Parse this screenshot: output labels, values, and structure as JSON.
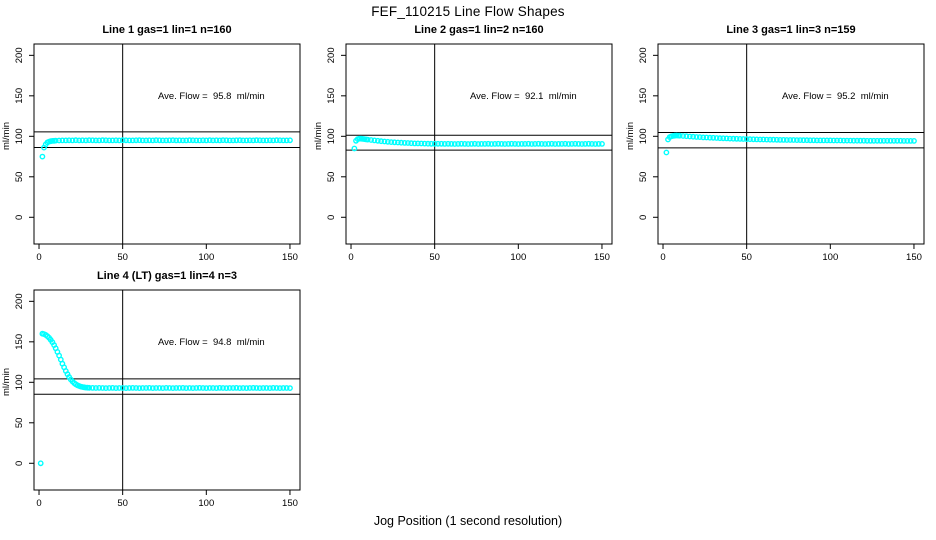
{
  "chart_data": {
    "type": "scatter",
    "title": "FEF_110215  Line Flow Shapes",
    "xlabel": "Jog Position (1 second resolution)",
    "ylabel": "ml/min",
    "marker_color": "#00FFFF",
    "line_color": "#000000",
    "legend": "none",
    "grid": false,
    "vline_x": 50,
    "annotation_xy": [
      103,
      150
    ],
    "axes": {
      "x_ticks": [
        0,
        50,
        100,
        150
      ],
      "y_ticks": [
        0,
        50,
        100,
        150,
        200
      ],
      "x_domain": [
        -3,
        156
      ],
      "y_domain": [
        -33,
        214
      ]
    },
    "panels": [
      {
        "title": "Line 1 gas=1 lin=1 n=160",
        "n": 160,
        "ave_flow": 95.8,
        "ave_label": "Ave. Flow =  95.8  ml/min",
        "hlines": [
          105.4,
          86.2
        ],
        "x_head": [
          2,
          3,
          4,
          5,
          6,
          7,
          8,
          9,
          10
        ],
        "x_tail_range": [
          12,
          150,
          2
        ],
        "y": [
          75,
          86,
          90,
          92.5,
          93.5,
          94,
          94.3,
          94.5,
          94.7,
          94.8,
          95,
          94.9,
          95.1,
          95,
          95.2,
          94.9,
          95.1,
          95,
          95.2,
          95.1,
          94.9,
          95,
          95.2,
          95.1,
          95,
          94.9,
          95.1,
          95,
          95.2,
          95.1,
          94.9,
          95,
          95.1,
          95.2,
          95,
          94.9,
          95.1,
          95,
          95.2,
          95.1,
          95,
          94.9,
          95.1,
          95.2,
          95,
          95.1,
          94.9,
          95,
          95.2,
          95.1,
          95,
          94.9,
          95.1,
          95,
          95.2,
          94.9,
          95.1,
          95,
          95.2,
          95.1,
          94.9,
          95,
          95.1,
          95.2,
          95,
          94.9,
          95.1,
          95,
          95.2,
          95.1,
          95,
          94.9,
          95.1,
          95,
          95.2,
          95.1,
          94.9,
          95,
          95.1
        ]
      },
      {
        "title": "Line 2 gas=1 lin=2 n=160",
        "n": 160,
        "ave_flow": 92.1,
        "ave_label": "Ave. Flow =  92.1  ml/min",
        "hlines": [
          101.3,
          82.9
        ],
        "x_head": [
          2,
          3,
          4,
          5,
          6,
          7,
          8,
          9,
          10
        ],
        "x_tail_range": [
          12,
          150,
          2
        ],
        "y": [
          85,
          94.5,
          96.5,
          97,
          97,
          96.8,
          96.5,
          96.2,
          95.9,
          95.4,
          94.9,
          94.4,
          94,
          93.6,
          93.2,
          92.9,
          92.6,
          92.3,
          92.1,
          91.9,
          91.7,
          91.5,
          91.3,
          91.2,
          91.1,
          91,
          90.9,
          90.8,
          90.8,
          90.7,
          90.7,
          90.6,
          90.7,
          90.6,
          90.5,
          90.6,
          90.7,
          90.6,
          90.5,
          90.6,
          90.7,
          90.5,
          90.6,
          90.6,
          90.7,
          90.5,
          90.6,
          90.7,
          90.6,
          90.5,
          90.6,
          90.7,
          90.6,
          90.5,
          90.6,
          90.6,
          90.7,
          90.5,
          90.6,
          90.7,
          90.6,
          90.5,
          90.6,
          90.7,
          90.5,
          90.6,
          90.6,
          90.7,
          90.5,
          90.6,
          90.7,
          90.6,
          90.5,
          90.6,
          90.7,
          90.6,
          90.5,
          90.6,
          90.6
        ]
      },
      {
        "title": "Line 3 gas=1 lin=3 n=159",
        "n": 159,
        "ave_flow": 95.2,
        "ave_label": "Ave. Flow =  95.2  ml/min",
        "hlines": [
          104.7,
          85.7
        ],
        "x_head": [
          2,
          3,
          4,
          5,
          6,
          7,
          8,
          9,
          10
        ],
        "x_tail_range": [
          12,
          150,
          2
        ],
        "y": [
          80,
          96,
          99,
          100,
          100.5,
          100.8,
          101,
          100.9,
          100.8,
          100.4,
          100.1,
          99.8,
          99.5,
          99.2,
          99,
          98.7,
          98.5,
          98.3,
          98.1,
          97.9,
          97.7,
          97.5,
          97.4,
          97.2,
          97.1,
          96.9,
          96.8,
          96.7,
          96.5,
          96.4,
          96.3,
          96.2,
          96.1,
          96,
          95.9,
          95.8,
          95.8,
          95.7,
          95.6,
          95.6,
          95.5,
          95.4,
          95.4,
          95.3,
          95.3,
          95.2,
          95.2,
          95.1,
          95.1,
          95,
          95,
          94.9,
          94.9,
          94.9,
          94.8,
          94.8,
          94.8,
          94.7,
          94.7,
          94.7,
          94.6,
          94.6,
          94.6,
          94.6,
          94.5,
          94.5,
          94.5,
          94.5,
          94.5,
          94.4,
          94.4,
          94.4,
          94.4,
          94.4,
          94.4,
          94.3,
          94.3,
          94.3,
          94.3
        ]
      },
      {
        "title": "Line 4 (LT) gas=1 lin=4 n=3",
        "n": 3,
        "ave_flow": 94.8,
        "ave_label": "Ave. Flow =  94.8  ml/min",
        "hlines": [
          104.3,
          85.3
        ],
        "x_head": [
          1,
          2,
          3,
          4,
          5,
          6,
          7,
          8,
          9,
          10,
          11,
          12,
          13,
          14,
          15,
          16,
          17,
          18,
          19,
          20,
          21,
          22,
          23,
          24,
          25,
          26,
          27,
          28,
          29,
          30
        ],
        "x_tail_range": [
          32,
          150,
          2
        ],
        "y": [
          0,
          160,
          159.5,
          158.5,
          157,
          155,
          152.5,
          149.5,
          146,
          142,
          137.5,
          133,
          128,
          123,
          118.5,
          114,
          110,
          106.5,
          103.5,
          101,
          99,
          97.5,
          96.3,
          95.4,
          94.7,
          94.2,
          93.8,
          93.5,
          93.3,
          93.2,
          93.1,
          93,
          93.1,
          93,
          92.9,
          93,
          93.1,
          92.9,
          93,
          93,
          92.9,
          93,
          93.1,
          93,
          92.9,
          93,
          93,
          93.1,
          92.9,
          93,
          93,
          92.9,
          93.1,
          93,
          92.9,
          93,
          93,
          93.1,
          92.9,
          93,
          92.9,
          93,
          93.1,
          93,
          92.9,
          93,
          93,
          92.9,
          93.1,
          93,
          92.9,
          93,
          93,
          93.1,
          92.9,
          93,
          92.9,
          93,
          93.1,
          93,
          92.9,
          93,
          93,
          92.9,
          93.1,
          93,
          92.9,
          93,
          93,
          92.9
        ]
      }
    ]
  }
}
